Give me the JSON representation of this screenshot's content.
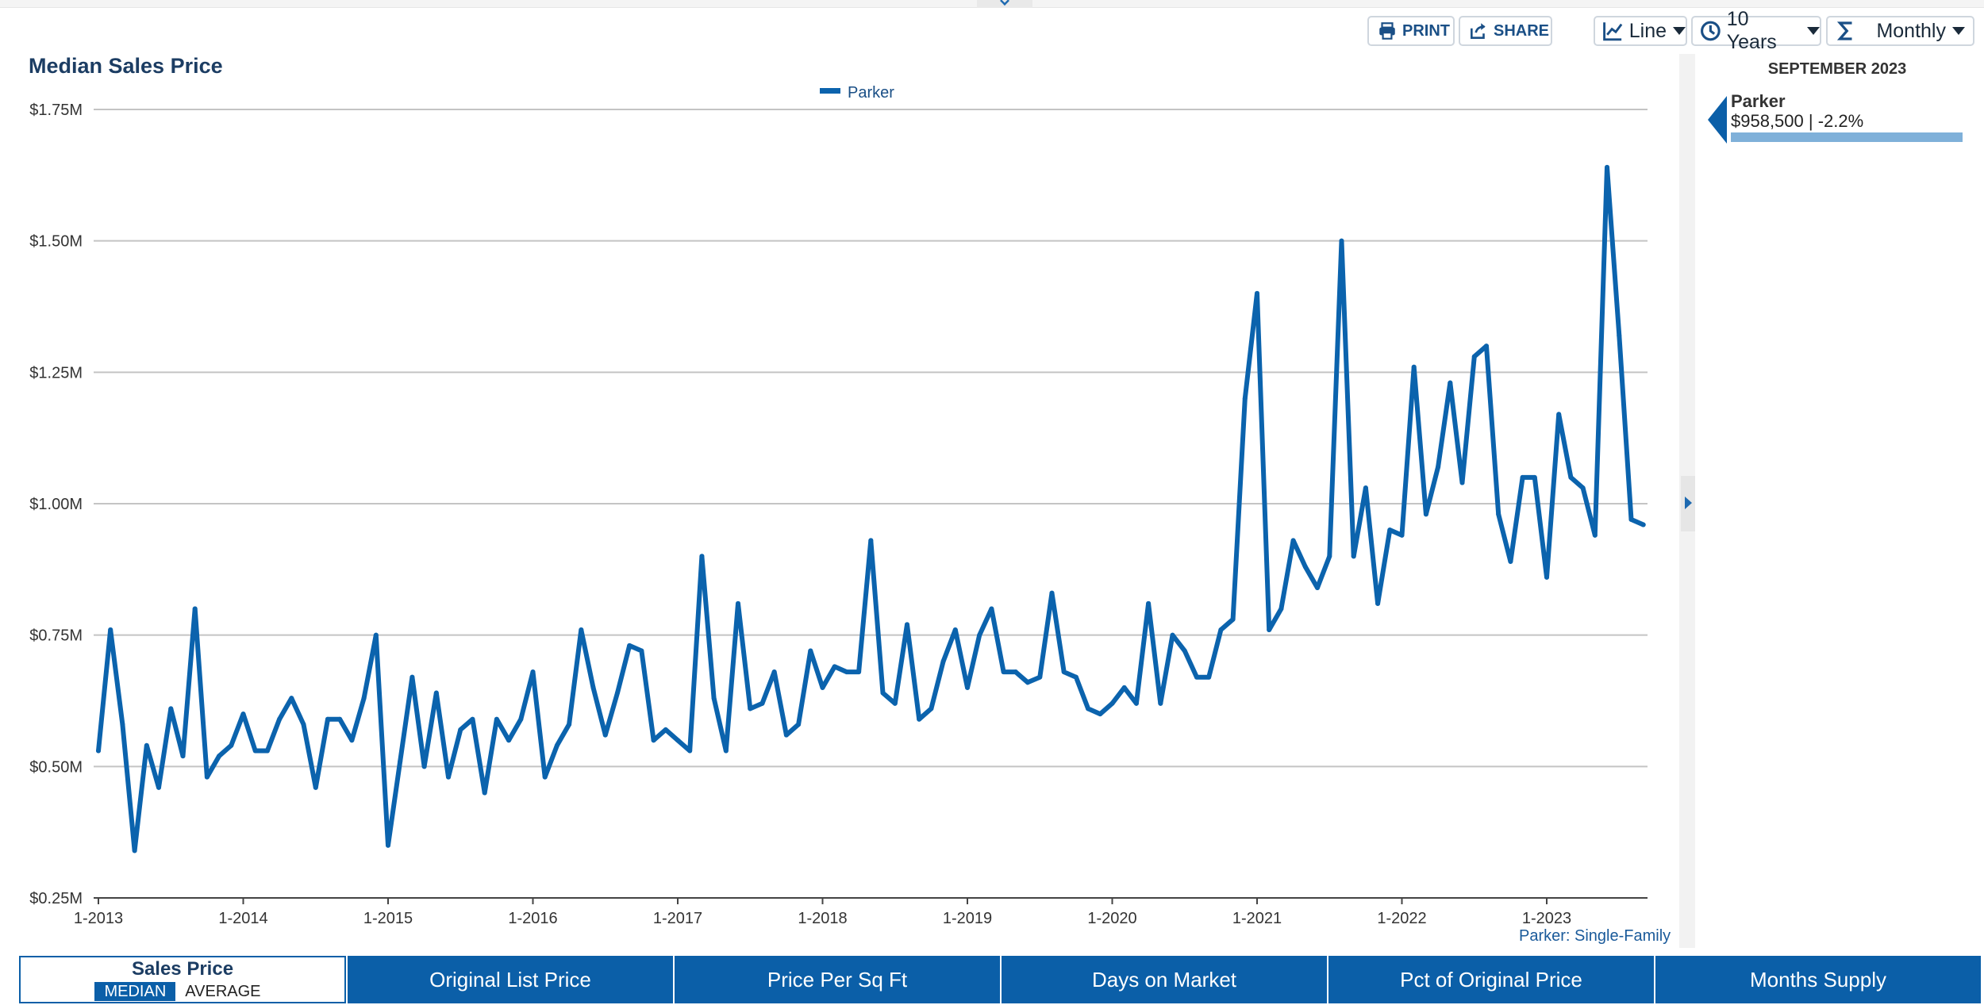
{
  "toolbar": {
    "print_label": "PRINT",
    "share_label": "SHARE",
    "chart_type": "Line",
    "range": "10 Years",
    "period": "Monthly"
  },
  "colors": {
    "accent": "#0b5fa8",
    "line": "#0b63ad",
    "panel_bar": "#7fb0d9"
  },
  "detail_panel": {
    "date": "SEPTEMBER 2023",
    "name": "Parker",
    "value": "$958,500 | -2.2%"
  },
  "tabs": {
    "active": {
      "title": "Sales Price",
      "sub_on": "MEDIAN",
      "sub_off": "AVERAGE"
    },
    "others": [
      "Original List Price",
      "Price Per Sq Ft",
      "Days on Market",
      "Pct of Original Price",
      "Months Supply"
    ]
  },
  "chart_data": {
    "type": "line",
    "title": "Median Sales Price",
    "xlabel": "",
    "ylabel": "",
    "ylim": [
      0.25,
      1.75
    ],
    "y_ticks": [
      0.25,
      0.5,
      0.75,
      1.0,
      1.25,
      1.5,
      1.75
    ],
    "y_tick_labels": [
      "$0.25M",
      "$0.50M",
      "$0.75M",
      "$1.00M",
      "$1.25M",
      "$1.50M",
      "$1.75M"
    ],
    "x_tick_labels": [
      "1-2013",
      "1-2014",
      "1-2015",
      "1-2016",
      "1-2017",
      "1-2018",
      "1-2019",
      "1-2020",
      "1-2021",
      "1-2022",
      "1-2023"
    ],
    "x_start": "1-2013",
    "x_end": "9-2023",
    "legend": [
      "Parker"
    ],
    "legend_position": "top-center",
    "grid": true,
    "source": "Parker: Single-Family",
    "series": [
      {
        "name": "Parker",
        "unit": "$M",
        "values": [
          0.53,
          0.76,
          0.58,
          0.34,
          0.54,
          0.46,
          0.61,
          0.52,
          0.8,
          0.48,
          0.52,
          0.54,
          0.6,
          0.53,
          0.53,
          0.59,
          0.63,
          0.58,
          0.46,
          0.59,
          0.59,
          0.55,
          0.63,
          0.75,
          0.35,
          0.51,
          0.67,
          0.5,
          0.64,
          0.48,
          0.57,
          0.59,
          0.45,
          0.59,
          0.55,
          0.59,
          0.68,
          0.48,
          0.54,
          0.58,
          0.76,
          0.65,
          0.56,
          0.64,
          0.73,
          0.72,
          0.55,
          0.57,
          0.55,
          0.53,
          0.9,
          0.63,
          0.53,
          0.81,
          0.61,
          0.62,
          0.68,
          0.56,
          0.58,
          0.72,
          0.65,
          0.69,
          0.68,
          0.68,
          0.93,
          0.64,
          0.62,
          0.77,
          0.59,
          0.61,
          0.7,
          0.76,
          0.65,
          0.75,
          0.8,
          0.68,
          0.68,
          0.66,
          0.67,
          0.83,
          0.68,
          0.67,
          0.61,
          0.6,
          0.62,
          0.65,
          0.62,
          0.81,
          0.62,
          0.75,
          0.72,
          0.67,
          0.67,
          0.76,
          0.78,
          1.2,
          1.4,
          0.76,
          0.8,
          0.93,
          0.88,
          0.84,
          0.9,
          1.5,
          0.9,
          1.03,
          0.81,
          0.95,
          0.94,
          1.26,
          0.98,
          1.07,
          1.23,
          1.04,
          1.28,
          1.3,
          0.98,
          0.89,
          1.05,
          1.05,
          0.86,
          1.17,
          1.05,
          1.03,
          0.94,
          1.64,
          1.32,
          0.97,
          0.96
        ]
      }
    ]
  }
}
